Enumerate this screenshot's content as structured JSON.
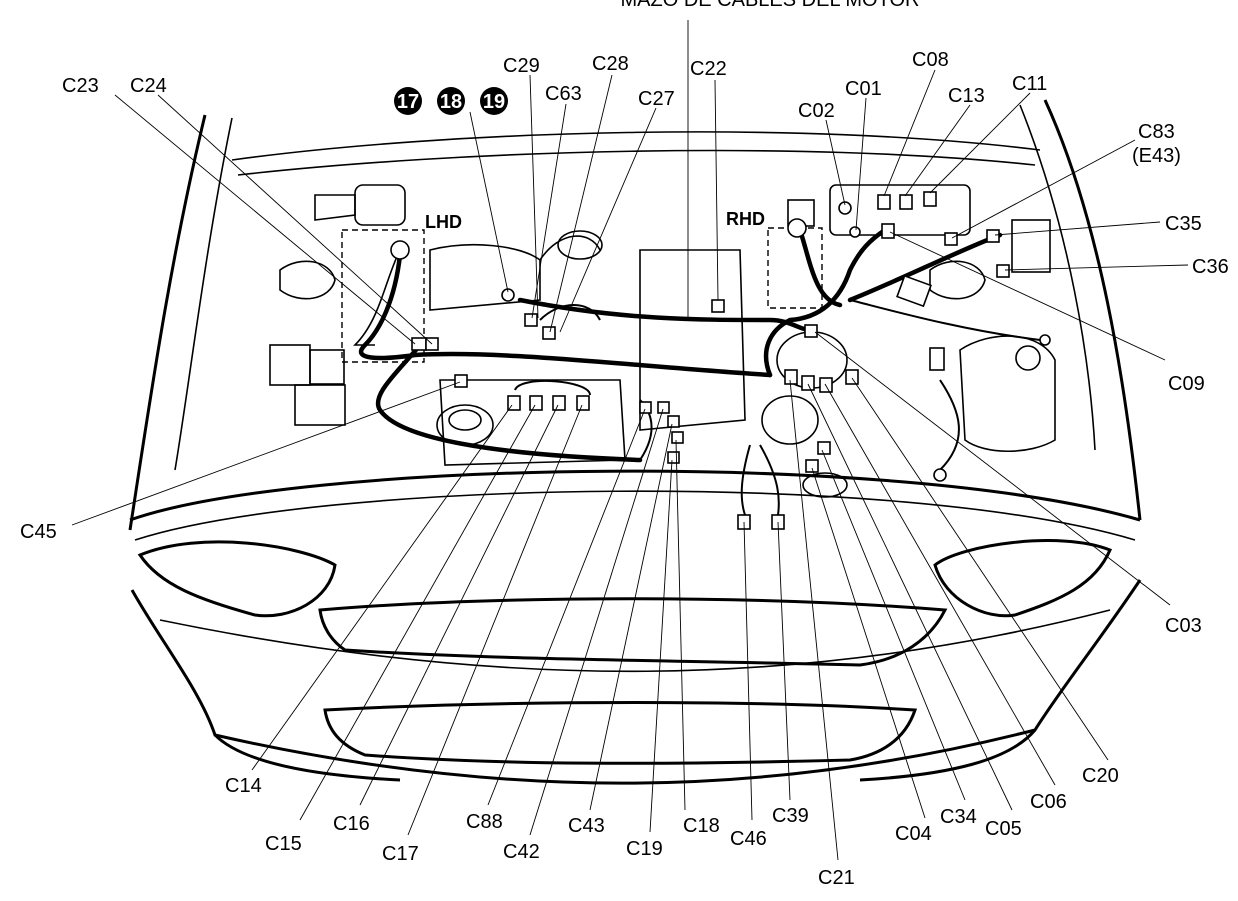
{
  "diagram": {
    "title": "MAZO DE CABLES DEL MOTOR",
    "side_labels": [
      "LHD",
      "RHD"
    ],
    "badges": [
      "17",
      "18",
      "19"
    ],
    "connectors": [
      "C23",
      "C24",
      "C29",
      "C28",
      "C63",
      "C27",
      "C22",
      "C02",
      "C01",
      "C08",
      "C13",
      "C11",
      "C83",
      "(E43)",
      "C35",
      "C36",
      "C09",
      "C03",
      "C20",
      "C06",
      "C05",
      "C34",
      "C04",
      "C21",
      "C39",
      "C46",
      "C18",
      "C19",
      "C43",
      "C42",
      "C88",
      "C17",
      "C16",
      "C15",
      "C14",
      "C45"
    ]
  }
}
